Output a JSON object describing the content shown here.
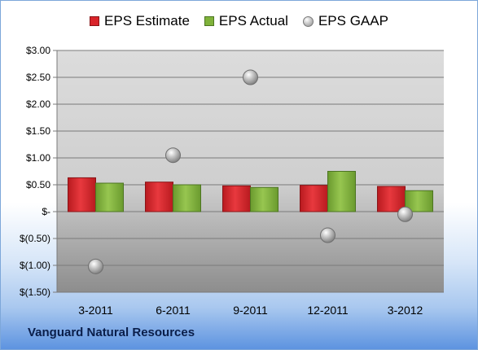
{
  "chart_data": {
    "type": "bar",
    "categories": [
      "3-2011",
      "6-2011",
      "9-2011",
      "12-2011",
      "3-2012"
    ],
    "series": [
      {
        "name": "EPS Estimate",
        "kind": "bar",
        "color": "#d9242a",
        "values": [
          0.63,
          0.55,
          0.48,
          0.49,
          0.47
        ]
      },
      {
        "name": "EPS Actual",
        "kind": "bar",
        "color": "#7fb23a",
        "values": [
          0.53,
          0.5,
          0.45,
          0.75,
          0.39
        ]
      },
      {
        "name": "EPS GAAP",
        "kind": "scatter",
        "color": "#a8a8a8",
        "values": [
          -1.02,
          1.05,
          2.5,
          -0.44,
          -0.05
        ]
      }
    ],
    "ylim": [
      -1.5,
      3.0
    ],
    "yticks": [
      3.0,
      2.5,
      2.0,
      1.5,
      1.0,
      0.5,
      0,
      -0.5,
      -1.0,
      -1.5
    ],
    "ytick_labels": [
      "$3.00",
      "$2.50",
      "$2.00",
      "$1.50",
      "$1.00",
      "$0.50",
      "$-",
      "$(0.50)",
      "$(1.00)",
      "$(1.50)"
    ],
    "grid": true,
    "legend_position": "top-center",
    "company": "Vanguard Natural Resources"
  }
}
